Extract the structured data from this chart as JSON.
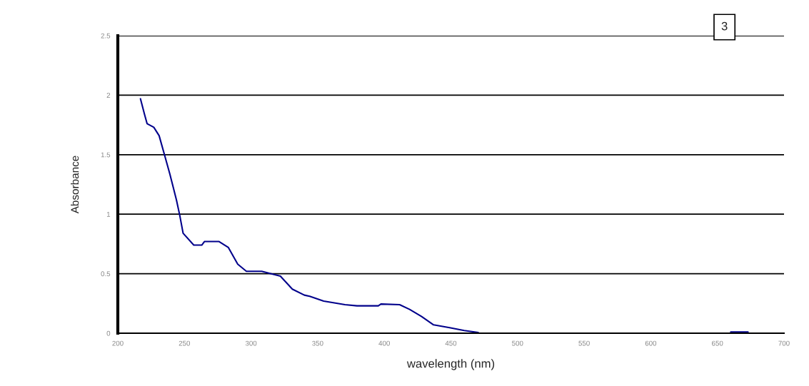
{
  "chart_data": {
    "type": "line",
    "ylabel": "Absorbance",
    "xlabel": "wavelength (nm)",
    "annotations": [
      "3"
    ],
    "xlim": [
      200,
      700
    ],
    "xticks": [
      200,
      250,
      300,
      350,
      400,
      450,
      500,
      550,
      600,
      650,
      700
    ],
    "ylim": [
      0,
      2.5
    ],
    "yticks": [
      0,
      0.5,
      1,
      1.5,
      2,
      2.5
    ],
    "grid": "y",
    "legend": false,
    "marker": "none",
    "line_style": "solid",
    "series": [
      {
        "color": "#00008b",
        "x": [
          217,
          220,
          222,
          227,
          231,
          235,
          239,
          244,
          246.5,
          249,
          257,
          263,
          265,
          276,
          283,
          290,
          296.5,
          308,
          322,
          331,
          340,
          344,
          354.5,
          370.5,
          379.5,
          395.5,
          397.5,
          411.5,
          419,
          428,
          437,
          449,
          460,
          470.5,
          530,
          660,
          673
        ],
        "values": [
          1.97,
          1.84,
          1.76,
          1.73,
          1.66,
          1.5,
          1.34,
          1.12,
          0.99,
          0.84,
          0.74,
          0.74,
          0.77,
          0.77,
          0.72,
          0.58,
          0.52,
          0.52,
          0.48,
          0.37,
          0.32,
          0.31,
          0.27,
          0.24,
          0.23,
          0.23,
          0.245,
          0.24,
          0.2,
          0.14,
          0.07,
          0.046,
          0.022,
          0.006,
          null,
          0.01,
          0.01
        ]
      }
    ]
  }
}
